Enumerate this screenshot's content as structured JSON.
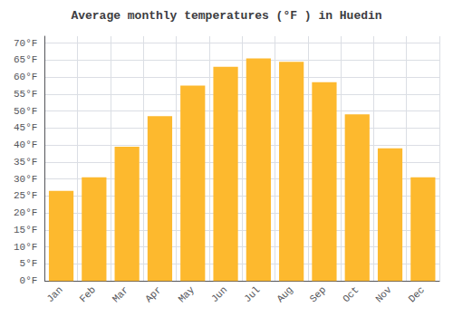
{
  "chart_data": {
    "type": "bar",
    "title": "Average monthly temperatures (°F ) in Huedin",
    "categories": [
      "Jan",
      "Feb",
      "Mar",
      "Apr",
      "May",
      "Jun",
      "Jul",
      "Aug",
      "Sep",
      "Oct",
      "Nov",
      "Dec"
    ],
    "values": [
      26.5,
      30.5,
      39.5,
      48.5,
      57.5,
      63.0,
      65.5,
      64.5,
      58.5,
      49.0,
      39.0,
      30.5
    ],
    "color": "#FDB92E",
    "ylim": [
      0,
      72
    ],
    "yticks": [
      {
        "value": 0,
        "label": "0°F"
      },
      {
        "value": 5,
        "label": "5°F"
      },
      {
        "value": 10,
        "label": "10°F"
      },
      {
        "value": 15,
        "label": "15°F"
      },
      {
        "value": 20,
        "label": "20°F"
      },
      {
        "value": 25,
        "label": "25°F"
      },
      {
        "value": 30,
        "label": "30°F"
      },
      {
        "value": 35,
        "label": "35°F"
      },
      {
        "value": 40,
        "label": "40°F"
      },
      {
        "value": 45,
        "label": "45°F"
      },
      {
        "value": 50,
        "label": "50°F"
      },
      {
        "value": 55,
        "label": "55°F"
      },
      {
        "value": 60,
        "label": "60°F"
      },
      {
        "value": 65,
        "label": "65°F"
      },
      {
        "value": 70,
        "label": "70°F"
      }
    ],
    "grid": true
  }
}
